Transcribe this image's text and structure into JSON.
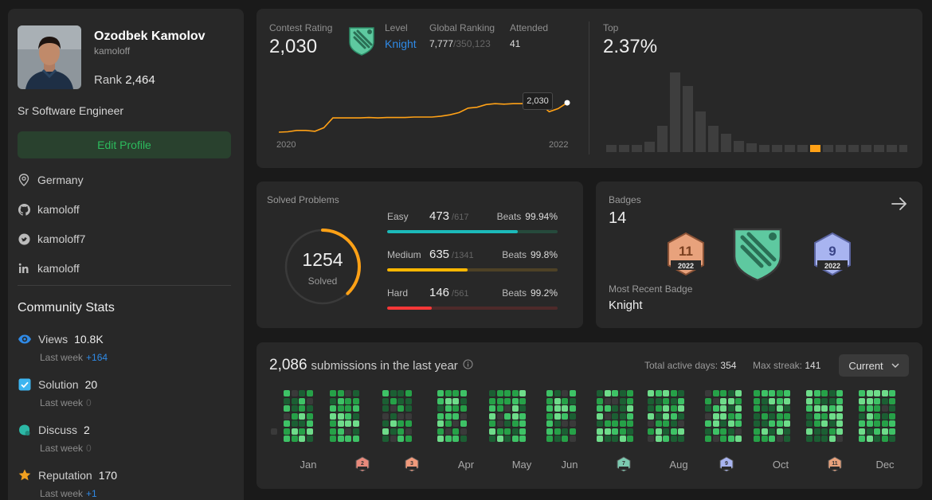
{
  "profile": {
    "name": "Ozodbek Kamolov",
    "username": "kamoloff",
    "rank_label": "Rank",
    "rank_value": "2,464",
    "title": "Sr Software Engineer",
    "edit_label": "Edit Profile",
    "location": "Germany",
    "github": "kamoloff",
    "twitter": "kamoloff7",
    "linkedin": "kamoloff"
  },
  "community": {
    "title": "Community Stats",
    "last_week_label": "Last week",
    "stats": [
      {
        "label": "Views",
        "value": "10.8K",
        "delta": "+164",
        "icon": "eye-icon",
        "color": "#2f8ae6"
      },
      {
        "label": "Solution",
        "value": "20",
        "delta": "0",
        "icon": "checkbox-icon",
        "color": "#3db5f0"
      },
      {
        "label": "Discuss",
        "value": "2",
        "delta": "0",
        "icon": "chat-icon",
        "color": "#2cb8a6"
      },
      {
        "label": "Reputation",
        "value": "170",
        "delta": "+1",
        "icon": "star-icon",
        "color": "#f0a020"
      }
    ]
  },
  "contest": {
    "rating_label": "Contest Rating",
    "rating": "2,030",
    "level_label": "Level",
    "level": "Knight",
    "global_label": "Global Ranking",
    "global_rank": "7,777",
    "global_total": "/350,123",
    "attended_label": "Attended",
    "attended": "41",
    "tooltip": "2,030",
    "x_start": "2020",
    "x_end": "2022",
    "top_label": "Top",
    "top_value": "2.37%",
    "line_points": [
      0.16,
      0.17,
      0.2,
      0.2,
      0.18,
      0.26,
      0.48,
      0.48,
      0.48,
      0.48,
      0.49,
      0.48,
      0.49,
      0.49,
      0.49,
      0.5,
      0.5,
      0.5,
      0.52,
      0.55,
      0.6,
      0.7,
      0.72,
      0.78,
      0.8,
      0.79,
      0.8,
      0.8,
      0.81,
      0.8,
      0.62,
      0.69,
      0.82
    ],
    "histogram": [
      0.09,
      0.09,
      0.09,
      0.13,
      0.33,
      1.0,
      0.83,
      0.51,
      0.33,
      0.23,
      0.14,
      0.11,
      0.09,
      0.09,
      0.09,
      0.09,
      0.09,
      0.09,
      0.09,
      0.09,
      0.09,
      0.09,
      0.09,
      0.09
    ],
    "histogram_highlight": 16,
    "accent_color": "#ffa116"
  },
  "solved": {
    "title": "Solved Problems",
    "total": "1254",
    "solved_label": "Solved",
    "progress": 0.38,
    "beats_label": "Beats",
    "rows": [
      {
        "name": "Easy",
        "count": "473",
        "total": "/617",
        "beats": "99.94%",
        "ratio": 0.767,
        "color": "#1cbaba",
        "track": "#264a3c"
      },
      {
        "name": "Medium",
        "count": "635",
        "total": "/1341",
        "beats": "99.8%",
        "ratio": 0.473,
        "color": "#ffb700",
        "track": "#4e4226"
      },
      {
        "name": "Hard",
        "count": "146",
        "total": "/561",
        "beats": "99.2%",
        "ratio": 0.26,
        "color": "#f63737",
        "track": "#4e2a2a"
      }
    ]
  },
  "badges": {
    "title": "Badges",
    "count": "14",
    "recent_label": "Most Recent Badge",
    "recent": "Knight",
    "items": [
      {
        "num": "11",
        "year": "2022",
        "color": "#e8a27c"
      },
      {
        "num": "9",
        "year": "2022",
        "color": "#a8b4f0"
      }
    ]
  },
  "submissions": {
    "count": "2,086",
    "label": "submissions in the last year",
    "active_label": "Total active days:",
    "active_value": "354",
    "streak_label": "Max streak:",
    "streak_value": "141",
    "dropdown": "Current",
    "months": [
      "Jan",
      "Apr",
      "May",
      "Jun",
      "Aug",
      "Oct",
      "Dec"
    ],
    "month_badges": [
      {
        "num": "2",
        "color": "#e88a7c"
      },
      {
        "num": "3",
        "color": "#f09a7c"
      },
      {
        "num": "7",
        "color": "#7ccab0"
      },
      {
        "num": "9",
        "color": "#a8b4f0"
      },
      {
        "num": "11",
        "color": "#e8a27c"
      }
    ]
  }
}
